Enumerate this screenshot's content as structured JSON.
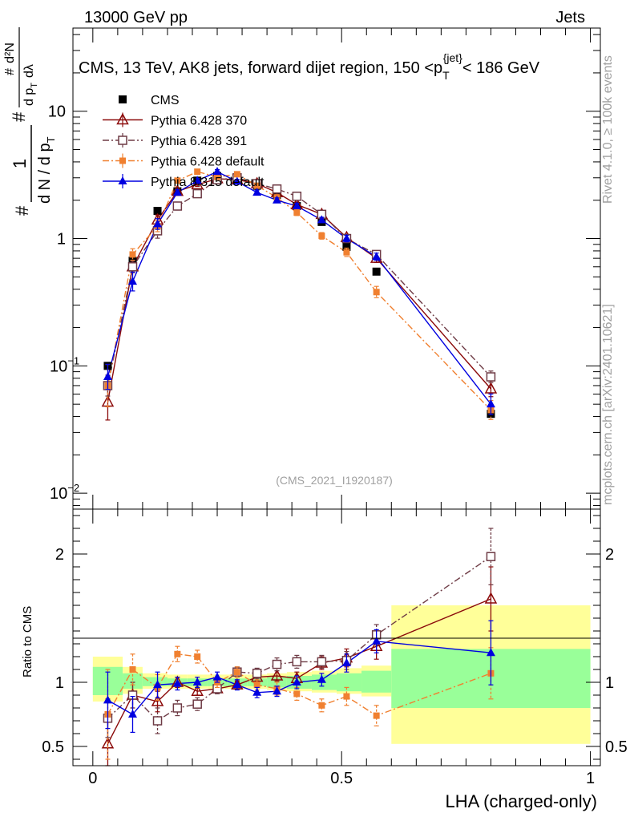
{
  "header": {
    "left": "13000 GeV pp",
    "right": "Jets"
  },
  "side_labels": {
    "rivet": "Rivet 4.1.0, ≥ 100k events",
    "mcplots": "mcplots.cern.ch [arXiv:2401.10621]"
  },
  "chart_data": {
    "type": "scatter",
    "title": "CMS, 13 TeV, AK8 jets, forward dijet region, 150 <p_T^{jet}< 186 GeV",
    "title_parts": {
      "prefix": "CMS, 13 TeV, AK8 jets, forward dijet region, 150 <p",
      "sub": "T",
      "sup": "{jet}",
      "suffix": "< 186 GeV"
    },
    "watermark": "(CMS_2021_I1920187)",
    "xlabel": "LHA (charged-only)",
    "ylabel_parts": {
      "hash": "#",
      "one": "1",
      "dN": "d N / d p",
      "T": "T",
      "d2N": "d²N",
      "dpT": "d p",
      "dlambda": "dλ"
    },
    "ratio_ylabel": "Ratio to CMS",
    "xlim": [
      -0.04,
      1.02
    ],
    "main_ylim": [
      0.0075,
      45
    ],
    "main_yscale": "log",
    "ratio_ylim": [
      0.35,
      2.35
    ],
    "main_y_ticks": [
      {
        "value": 0.01,
        "label": "10",
        "exp": "−2"
      },
      {
        "value": 0.1,
        "label": "10",
        "exp": "−1"
      },
      {
        "value": 1,
        "label": "1",
        "exp": ""
      },
      {
        "value": 10,
        "label": "10",
        "exp": ""
      }
    ],
    "ratio_y_ticks": [
      {
        "value": 0.5,
        "label": "0.5"
      },
      {
        "value": 1,
        "label": "1"
      },
      {
        "value": 2,
        "label": "2"
      }
    ],
    "x_ticks": [
      {
        "value": 0,
        "label": "0"
      },
      {
        "value": 0.5,
        "label": "0.5"
      },
      {
        "value": 1,
        "label": "1"
      }
    ],
    "legend_position": "top-left",
    "bins": [
      [
        0.0,
        0.06
      ],
      [
        0.06,
        0.1
      ],
      [
        0.1,
        0.15
      ],
      [
        0.15,
        0.19
      ],
      [
        0.19,
        0.23
      ],
      [
        0.23,
        0.27
      ],
      [
        0.27,
        0.31
      ],
      [
        0.31,
        0.35
      ],
      [
        0.35,
        0.39
      ],
      [
        0.39,
        0.44
      ],
      [
        0.44,
        0.49
      ],
      [
        0.49,
        0.54
      ],
      [
        0.54,
        0.6
      ],
      [
        0.6,
        1.0
      ]
    ],
    "x": [
      0.03,
      0.08,
      0.13,
      0.17,
      0.21,
      0.25,
      0.29,
      0.33,
      0.37,
      0.41,
      0.46,
      0.51,
      0.57,
      0.8
    ],
    "ratio_band_inner": [
      [
        0.9,
        1.12
      ],
      [
        0.95,
        1.07
      ],
      [
        0.97,
        1.04
      ],
      [
        0.97,
        1.03
      ],
      [
        0.97,
        1.03
      ],
      [
        0.97,
        1.03
      ],
      [
        0.97,
        1.03
      ],
      [
        0.97,
        1.03
      ],
      [
        0.96,
        1.04
      ],
      [
        0.95,
        1.05
      ],
      [
        0.94,
        1.06
      ],
      [
        0.93,
        1.07
      ],
      [
        0.92,
        1.09
      ],
      [
        0.8,
        1.26
      ]
    ],
    "ratio_band_outer": [
      [
        0.85,
        1.2
      ],
      [
        0.91,
        1.12
      ],
      [
        0.95,
        1.07
      ],
      [
        0.95,
        1.06
      ],
      [
        0.95,
        1.06
      ],
      [
        0.95,
        1.06
      ],
      [
        0.95,
        1.06
      ],
      [
        0.95,
        1.06
      ],
      [
        0.94,
        1.07
      ],
      [
        0.93,
        1.08
      ],
      [
        0.92,
        1.09
      ],
      [
        0.91,
        1.11
      ],
      [
        0.89,
        1.13
      ],
      [
        0.52,
        1.6
      ]
    ],
    "series": [
      {
        "name": "CMS",
        "color": "#000000",
        "marker": "square-filled",
        "line": "none",
        "values": [
          0.1,
          0.67,
          1.65,
          2.35,
          2.85,
          3.1,
          2.95,
          2.6,
          2.2,
          1.8,
          1.35,
          0.86,
          0.55,
          0.042
        ],
        "ratio": [
          1,
          1,
          1,
          1,
          1,
          1,
          1,
          1,
          1,
          1,
          1,
          1,
          1,
          1
        ]
      },
      {
        "name": "Pythia 6.428 370",
        "color": "#8b0a0a",
        "marker": "triangle-open",
        "line": "solid",
        "values": [
          0.052,
          0.6,
          1.4,
          2.35,
          2.65,
          2.95,
          2.9,
          2.7,
          2.3,
          1.85,
          1.55,
          1.02,
          0.7,
          0.066
        ],
        "ratio": [
          0.52,
          0.9,
          0.85,
          1.0,
          0.93,
          0.95,
          0.98,
          1.04,
          1.05,
          1.03,
          1.15,
          1.19,
          1.28,
          1.65
        ],
        "ratio_err": [
          0.2,
          0.1,
          0.08,
          0.04,
          0.03,
          0.03,
          0.03,
          0.03,
          0.04,
          0.05,
          0.05,
          0.07,
          0.1,
          0.25
        ]
      },
      {
        "name": "Pythia 6.428 391",
        "color": "#6e3b45",
        "marker": "square-open",
        "line": "dashdot",
        "values": [
          0.07,
          0.6,
          1.15,
          1.8,
          2.25,
          2.9,
          3.0,
          2.7,
          2.45,
          2.15,
          1.55,
          1.0,
          0.75,
          0.082
        ],
        "ratio": [
          0.72,
          0.9,
          0.7,
          0.8,
          0.83,
          0.95,
          1.08,
          1.07,
          1.14,
          1.16,
          1.16,
          1.17,
          1.37,
          1.98
        ],
        "ratio_err": [
          0.15,
          0.1,
          0.1,
          0.06,
          0.05,
          0.04,
          0.04,
          0.04,
          0.05,
          0.05,
          0.05,
          0.07,
          0.08,
          0.22
        ]
      },
      {
        "name": "Pythia 6.428 default",
        "color": "#f08030",
        "marker": "square-filled-small",
        "line": "dashdot",
        "values": [
          0.07,
          0.75,
          1.25,
          2.85,
          3.35,
          3.05,
          3.2,
          2.6,
          2.1,
          1.6,
          1.05,
          0.78,
          0.38,
          0.045
        ],
        "ratio": [
          0.75,
          1.1,
          0.96,
          1.22,
          1.2,
          1.0,
          1.08,
          0.98,
          0.95,
          0.91,
          0.82,
          0.89,
          0.74,
          1.07
        ],
        "ratio_err": [
          0.35,
          0.12,
          0.1,
          0.06,
          0.05,
          0.04,
          0.04,
          0.04,
          0.05,
          0.05,
          0.05,
          0.07,
          0.08,
          0.2
        ]
      },
      {
        "name": "Pythia 8.315 default",
        "color": "#0000e0",
        "marker": "triangle-filled",
        "line": "solid",
        "values": [
          0.082,
          0.46,
          1.3,
          2.3,
          2.85,
          3.35,
          2.8,
          2.3,
          2.0,
          1.8,
          1.4,
          1.0,
          0.72,
          0.05
        ],
        "ratio": [
          0.86,
          0.75,
          0.98,
          0.99,
          1.0,
          1.04,
          0.98,
          0.92,
          0.93,
          1.0,
          1.02,
          1.15,
          1.32,
          1.23
        ],
        "ratio_err": [
          0.22,
          0.14,
          0.1,
          0.05,
          0.04,
          0.04,
          0.04,
          0.04,
          0.04,
          0.05,
          0.05,
          0.07,
          0.09,
          0.25
        ]
      }
    ]
  }
}
